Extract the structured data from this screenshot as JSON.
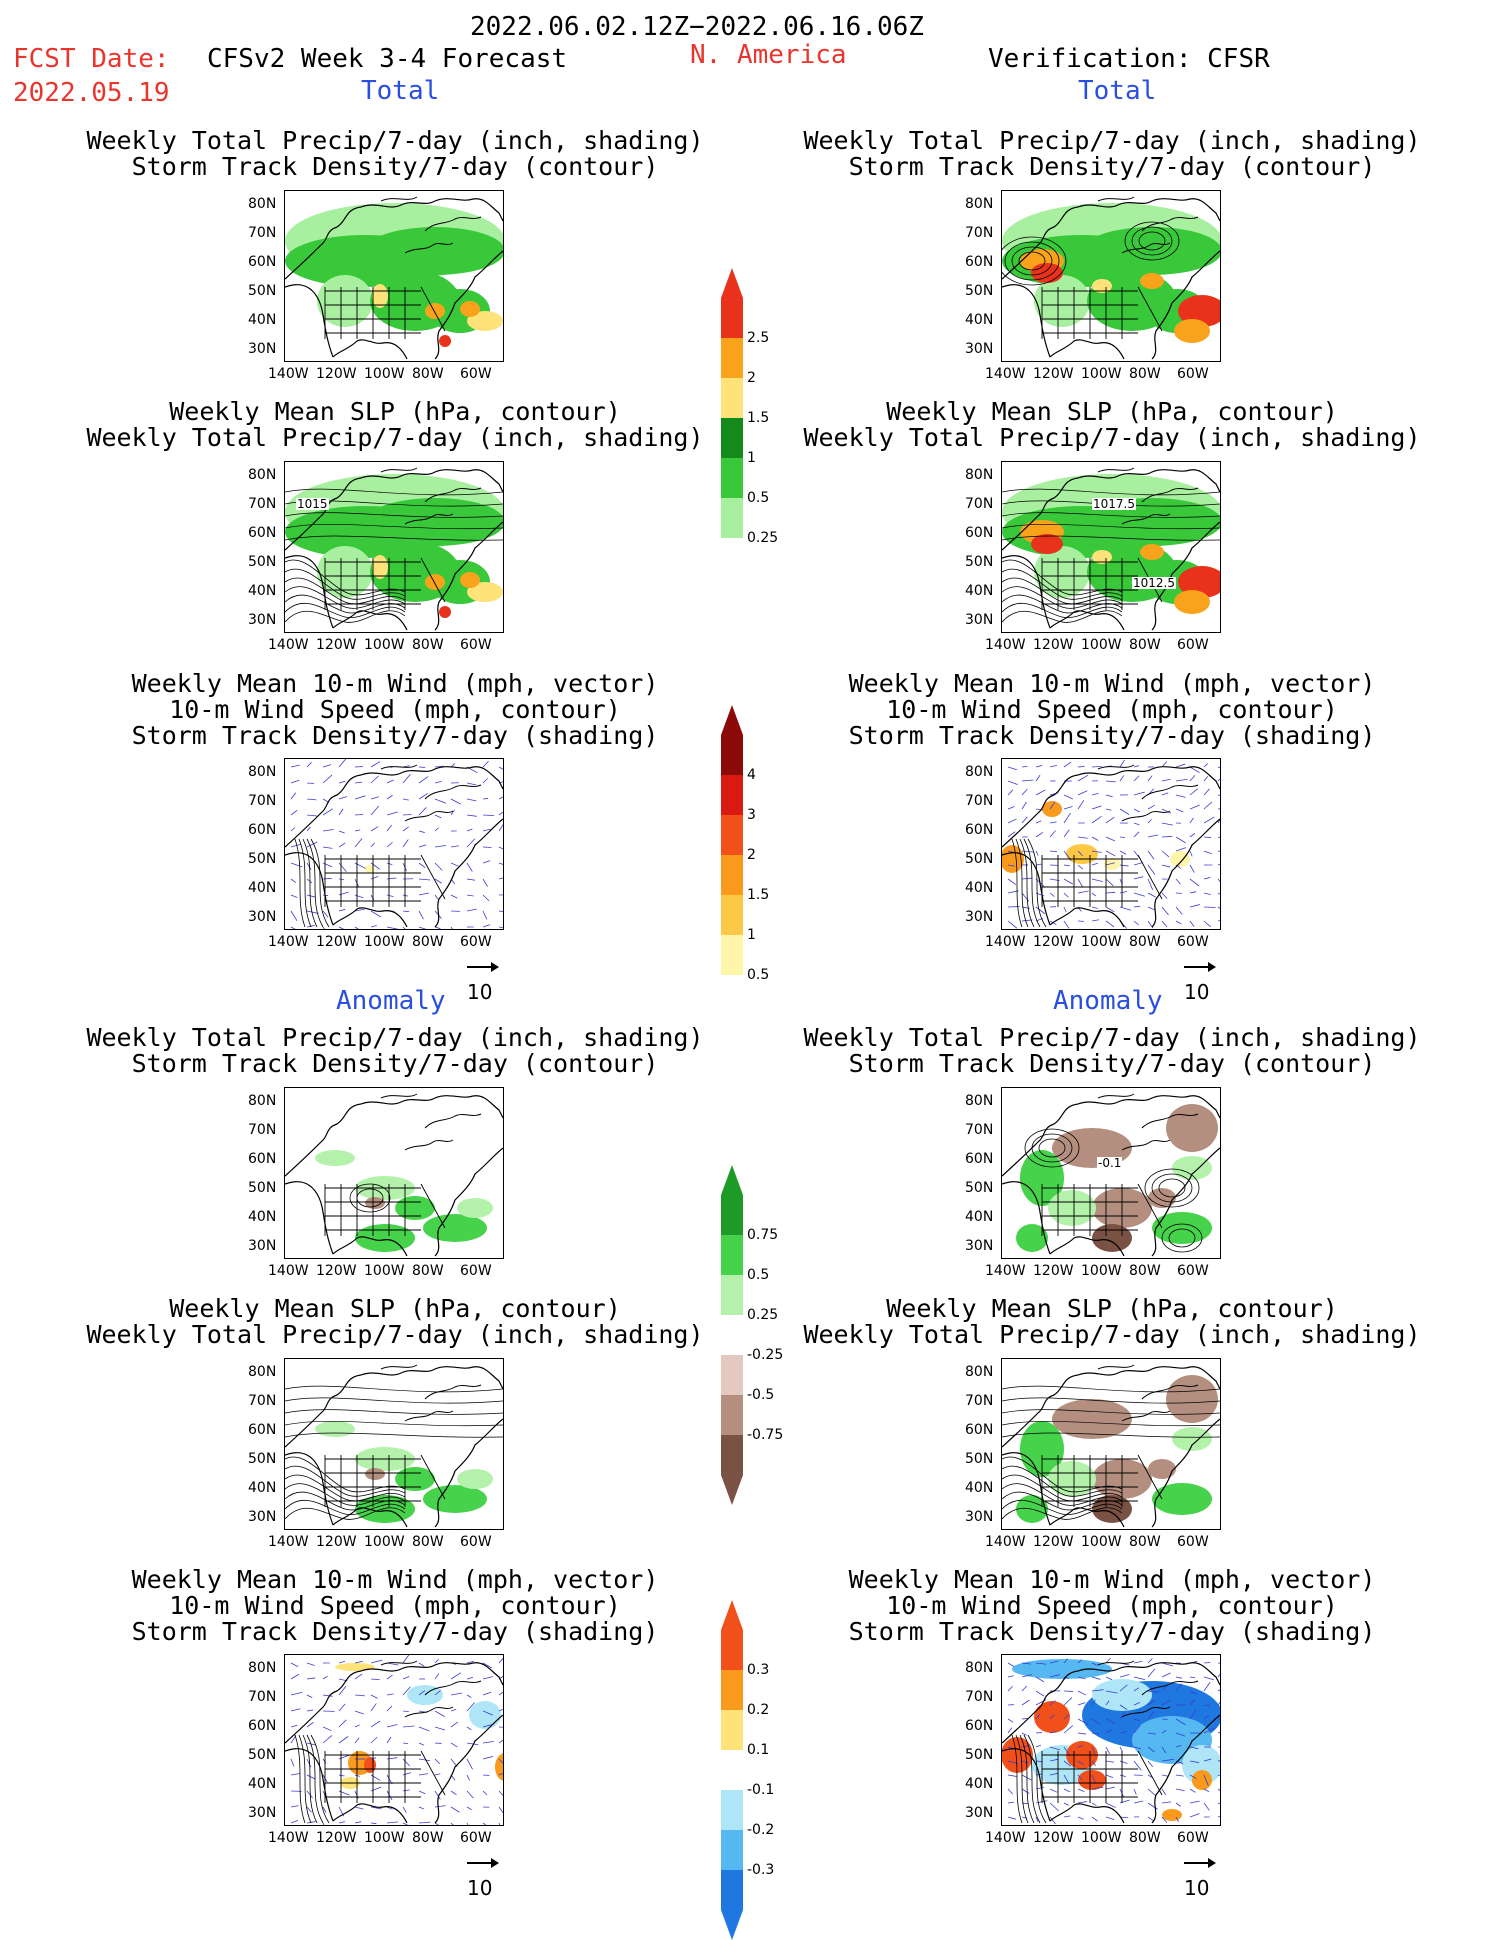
{
  "header": {
    "period": "2022.06.02.12Z−2022.06.16.06Z",
    "region": "N. America",
    "fcst_label": "FCST Date:",
    "fcst_date": "2022.05.19",
    "model": "CFSv2 Week 3-4 Forecast",
    "verification": "Verification: CFSR"
  },
  "sections": {
    "total": "Total",
    "anomaly": "Anomaly"
  },
  "titles": {
    "precip_storm": [
      "Weekly Total Precip/7-day (inch, shading)",
      "Storm Track Density/7-day (contour)"
    ],
    "slp_precip": [
      "Weekly Mean SLP (hPa, contour)",
      "Weekly Total Precip/7-day (inch, shading)"
    ],
    "wind_storm": [
      "Weekly Mean 10-m Wind (mph, vector)",
      "10-m Wind Speed (mph, contour)",
      "Storm Track Density/7-day (shading)"
    ]
  },
  "axes": {
    "lat_ticks": [
      "80N",
      "70N",
      "60N",
      "50N",
      "40N",
      "30N"
    ],
    "lon_ticks": [
      "140W",
      "120W",
      "100W",
      "80W",
      "60W"
    ]
  },
  "contour_labels": {
    "slp_fcst": "1015",
    "slp_obs_1": "1017.5",
    "slp_obs_2": "1012.5",
    "anom_obs": "-0.1"
  },
  "vector_ref": "10",
  "colorbars": {
    "precip_total": {
      "labels": [
        "2.5",
        "2",
        "1.5",
        "1",
        "0.5",
        "0.25"
      ],
      "colors": [
        "#e8321c",
        "#f9a21b",
        "#fde37a",
        "#138a1a",
        "#38c83a",
        "#a8f0a0"
      ]
    },
    "storm_total": {
      "labels": [
        "4",
        "3",
        "2",
        "1.5",
        "1",
        "0.5"
      ],
      "colors": [
        "#8c0a0a",
        "#d81a10",
        "#f2501a",
        "#f99a1c",
        "#fcc845",
        "#fff5a8"
      ]
    },
    "precip_anom": {
      "labels": [
        "0.75",
        "0.5",
        "0.25",
        "-0.25",
        "-0.5",
        "-0.75"
      ],
      "colors": [
        "#1e9a26",
        "#46d24a",
        "#b4f2ac",
        "#ffffff",
        "#e3c9bf",
        "#b48f80",
        "#7a5244"
      ]
    },
    "storm_anom": {
      "labels": [
        "0.3",
        "0.2",
        "0.1",
        "-0.1",
        "-0.2",
        "-0.3"
      ],
      "colors": [
        "#f2501a",
        "#f99a1c",
        "#fde37a",
        "#ffffff",
        "#aee6f8",
        "#55b8f0",
        "#1f78e0"
      ]
    }
  }
}
